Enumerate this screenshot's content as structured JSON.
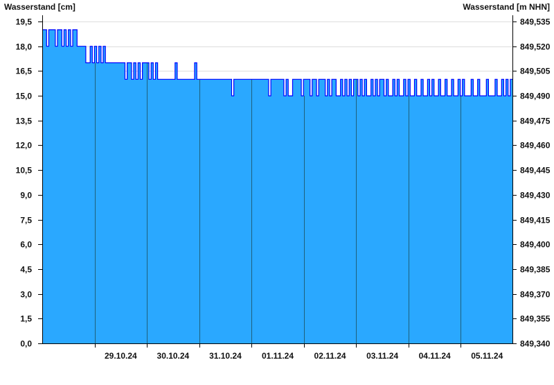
{
  "chart_data": {
    "type": "area",
    "ylabel": "Wasserstand [cm]",
    "ylabel_right": "Wasserstand [m NHN]",
    "ylim": [
      0,
      19.5
    ],
    "yticks": [
      "0,0",
      "1,5",
      "3,0",
      "4,5",
      "6,0",
      "7,5",
      "9,0",
      "10,5",
      "12,0",
      "13,5",
      "15,0",
      "16,5",
      "18,0",
      "19,5"
    ],
    "yticks_right": [
      "849,340",
      "849,355",
      "849,370",
      "849,385",
      "849,400",
      "849,415",
      "849,430",
      "849,445",
      "849,460",
      "849,475",
      "849,490",
      "849,505",
      "849,520",
      "849,535"
    ],
    "xticks": [
      "29.10.24",
      "30.10.24",
      "31.10.24",
      "01.11.24",
      "02.11.24",
      "03.11.24",
      "04.11.24",
      "05.11.24"
    ],
    "xlim": [
      "28.10.24 00:00",
      "06.11.24 00:00"
    ],
    "grid": true,
    "colors": {
      "fill": "#2aa8ff",
      "line": "#0000ff",
      "day_lines": "#1e5f7a",
      "grid": "#dddddd"
    },
    "series": [
      {
        "date": "28.10.24",
        "hourly": [
          19,
          19,
          18,
          19,
          19,
          19,
          18,
          19,
          19,
          18,
          19,
          18,
          19,
          18,
          19,
          19,
          18,
          18,
          18,
          18,
          17,
          17,
          18,
          17
        ]
      },
      {
        "date": "29.10.24",
        "hourly": [
          18,
          17,
          18,
          17,
          18,
          17,
          17,
          17,
          17,
          17,
          17,
          17,
          17,
          17,
          16,
          17,
          17,
          16,
          17,
          16,
          17,
          16,
          17,
          17
        ]
      },
      {
        "date": "30.10.24",
        "hourly": [
          17,
          16,
          17,
          16,
          17,
          16,
          16,
          16,
          16,
          16,
          16,
          16,
          16,
          17,
          16,
          16,
          16,
          16,
          16,
          16,
          16,
          16,
          17,
          16
        ]
      },
      {
        "date": "31.10.24",
        "hourly": [
          16,
          16,
          16,
          16,
          16,
          16,
          16,
          16,
          16,
          16,
          16,
          16,
          16,
          16,
          16,
          15,
          16,
          16,
          16,
          16,
          16,
          16,
          16,
          16
        ]
      },
      {
        "date": "01.11.24",
        "hourly": [
          16,
          16,
          16,
          16,
          16,
          16,
          16,
          16,
          15,
          16,
          16,
          16,
          16,
          16,
          16,
          15,
          16,
          15,
          15,
          16,
          16,
          16,
          16,
          15
        ]
      },
      {
        "date": "02.11.24",
        "hourly": [
          16,
          16,
          16,
          15,
          16,
          16,
          15,
          16,
          16,
          16,
          15,
          16,
          15,
          16,
          16,
          15,
          15,
          16,
          15,
          16,
          15,
          16,
          15,
          16
        ]
      },
      {
        "date": "03.11.24",
        "hourly": [
          16,
          15,
          16,
          15,
          16,
          15,
          15,
          16,
          15,
          16,
          15,
          16,
          16,
          15,
          16,
          15,
          15,
          16,
          15,
          16,
          15,
          15,
          16,
          15
        ]
      },
      {
        "date": "04.11.24",
        "hourly": [
          16,
          15,
          15,
          16,
          15,
          15,
          16,
          15,
          15,
          16,
          15,
          16,
          15,
          15,
          16,
          15,
          15,
          16,
          15,
          15,
          16,
          15,
          15,
          16
        ]
      },
      {
        "date": "05.11.24",
        "hourly": [
          15,
          16,
          15,
          15,
          15,
          16,
          15,
          15,
          16,
          15,
          15,
          15,
          16,
          15,
          15,
          15,
          16,
          15,
          15,
          16,
          15,
          16,
          15,
          16
        ]
      }
    ]
  }
}
